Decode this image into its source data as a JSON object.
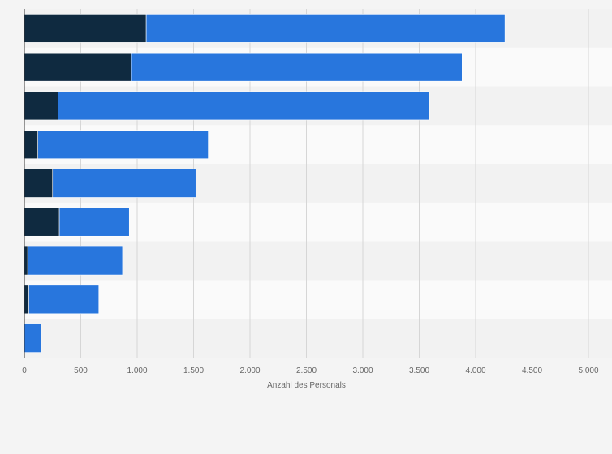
{
  "chart_data": {
    "type": "bar",
    "orientation": "horizontal",
    "stacked": true,
    "categories": [
      "",
      "",
      "",
      "",
      "",
      "",
      "",
      "",
      ""
    ],
    "series": [
      {
        "values": [
          1080,
          950,
          300,
          120,
          250,
          310,
          30,
          40,
          0
        ]
      },
      {
        "values": [
          3180,
          2930,
          3290,
          1510,
          1270,
          620,
          840,
          620,
          150
        ]
      }
    ],
    "xlabel": "Anzahl des Personals",
    "ylabel": "",
    "xlim": [
      0,
      5000
    ],
    "xticks": [
      0,
      500,
      1000,
      1500,
      2000,
      2500,
      3000,
      3500,
      4000,
      4500,
      5000
    ],
    "xtick_labels": [
      "0",
      "500",
      "1.000",
      "1.500",
      "2.000",
      "2.500",
      "3.000",
      "3.500",
      "4.000",
      "4.500",
      "5.000"
    ],
    "grid": true,
    "colors": {
      "series": [
        "#0f2a40",
        "#2876dd"
      ],
      "band_dark": "#f2f2f2",
      "band_light": "#fafafa",
      "grid": "#d6d6d6",
      "axis": "#333333",
      "background": "#f4f4f4"
    }
  }
}
